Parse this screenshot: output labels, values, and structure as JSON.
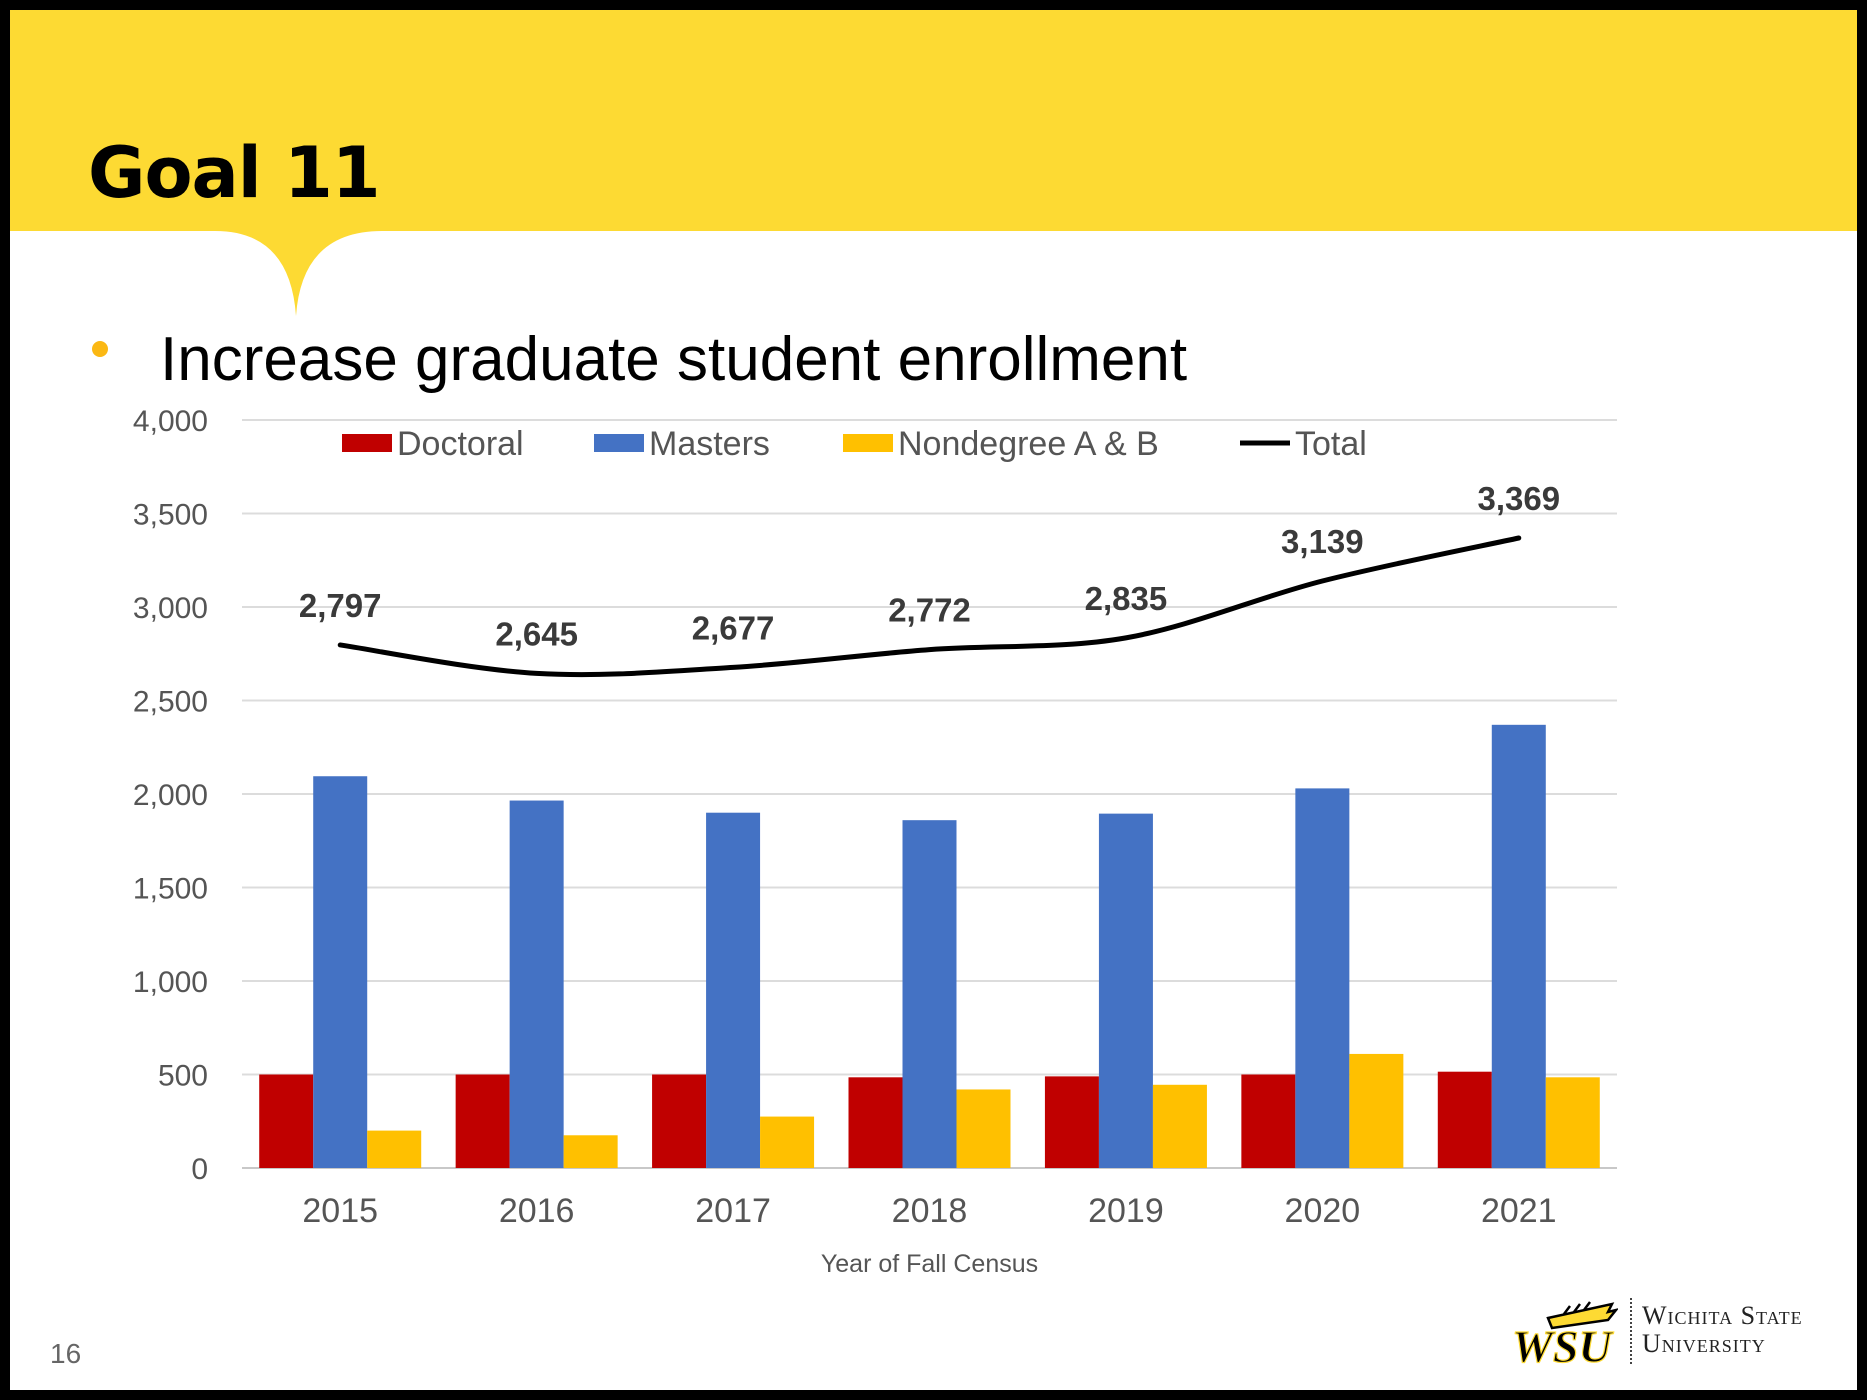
{
  "slide": {
    "title": "Goal 11",
    "bullet": "Increase graduate student enrollment",
    "page_number": "16",
    "university_line1": "Wichita State",
    "university_line2": "University",
    "logo_text": "WSU",
    "colors": {
      "banner": "#fdda33",
      "bullet": "#fbb814"
    }
  },
  "chart_data": {
    "type": "bar",
    "categories": [
      "2015",
      "2016",
      "2017",
      "2018",
      "2019",
      "2020",
      "2021"
    ],
    "series": [
      {
        "name": "Doctoral",
        "kind": "bar",
        "color": "#c00000",
        "values": [
          500,
          500,
          500,
          485,
          490,
          500,
          515
        ]
      },
      {
        "name": "Masters",
        "kind": "bar",
        "color": "#4472c4",
        "values": [
          2095,
          1965,
          1900,
          1860,
          1895,
          2030,
          2370
        ]
      },
      {
        "name": "Nondegree A & B",
        "kind": "bar",
        "color": "#ffc000",
        "values": [
          200,
          175,
          275,
          420,
          445,
          610,
          485
        ]
      },
      {
        "name": "Total",
        "kind": "line",
        "color": "#000000",
        "values": [
          2797,
          2645,
          2677,
          2772,
          2835,
          3139,
          3369
        ],
        "labels": [
          "2,797",
          "2,645",
          "2,677",
          "2,772",
          "2,835",
          "3,139",
          "3,369"
        ]
      }
    ],
    "xlabel": "Year of Fall Census",
    "ylabel": "",
    "ylim": [
      0,
      4000
    ],
    "yticks": [
      0,
      500,
      1000,
      1500,
      2000,
      2500,
      3000,
      3500,
      4000
    ],
    "ytick_labels": [
      "0",
      "500",
      "1,000",
      "1,500",
      "2,000",
      "2,500",
      "3,000",
      "3,500",
      "4,000"
    ],
    "grid": true,
    "legend_position": "top"
  }
}
